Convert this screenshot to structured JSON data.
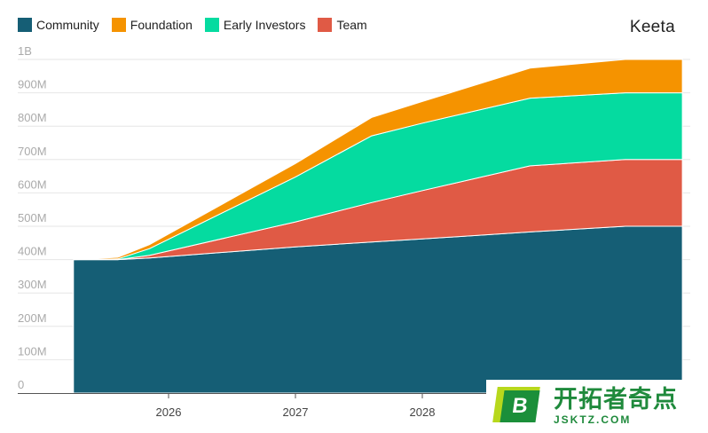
{
  "brand": "Keeta",
  "legend": [
    {
      "label": "Community",
      "color": "#155e75"
    },
    {
      "label": "Foundation",
      "color": "#f59300"
    },
    {
      "label": "Early Investors",
      "color": "#05dba0"
    },
    {
      "label": "Team",
      "color": "#e05a45"
    }
  ],
  "watermark": {
    "logo_letter": "B",
    "text": "开拓者奇点",
    "url": "JSKTZ.COM"
  },
  "chart_data": {
    "type": "area",
    "stacked": true,
    "title": "",
    "xlabel": "",
    "ylabel": "",
    "x": [
      2025.25,
      2025.6,
      2025.85,
      2027.0,
      2027.6,
      2028.0,
      2028.85,
      2029.6,
      2030.05
    ],
    "x_ticks": [
      "2026",
      "2027",
      "2028"
    ],
    "x_tick_values": [
      2026,
      2027,
      2028
    ],
    "y_ticks": [
      "0",
      "100M",
      "200M",
      "300M",
      "400M",
      "500M",
      "600M",
      "700M",
      "800M",
      "900M",
      "1B"
    ],
    "ylim": [
      0,
      1000
    ],
    "y_unit": "millions",
    "grid": true,
    "legend_position": "top-left",
    "series": [
      {
        "name": "Community",
        "color": "#155e75",
        "values": [
          400,
          400,
          405,
          438,
          453,
          462,
          483,
          500,
          500
        ]
      },
      {
        "name": "Team",
        "color": "#e05a45",
        "values": [
          0,
          0,
          8,
          75,
          118,
          145,
          198,
          200,
          200
        ]
      },
      {
        "name": "Early Investors",
        "color": "#05dba0",
        "values": [
          0,
          2,
          20,
          135,
          200,
          202,
          203,
          200,
          200
        ]
      },
      {
        "name": "Foundation",
        "color": "#f59300",
        "values": [
          0,
          5,
          12,
          40,
          55,
          65,
          90,
          100,
          100
        ]
      }
    ]
  }
}
